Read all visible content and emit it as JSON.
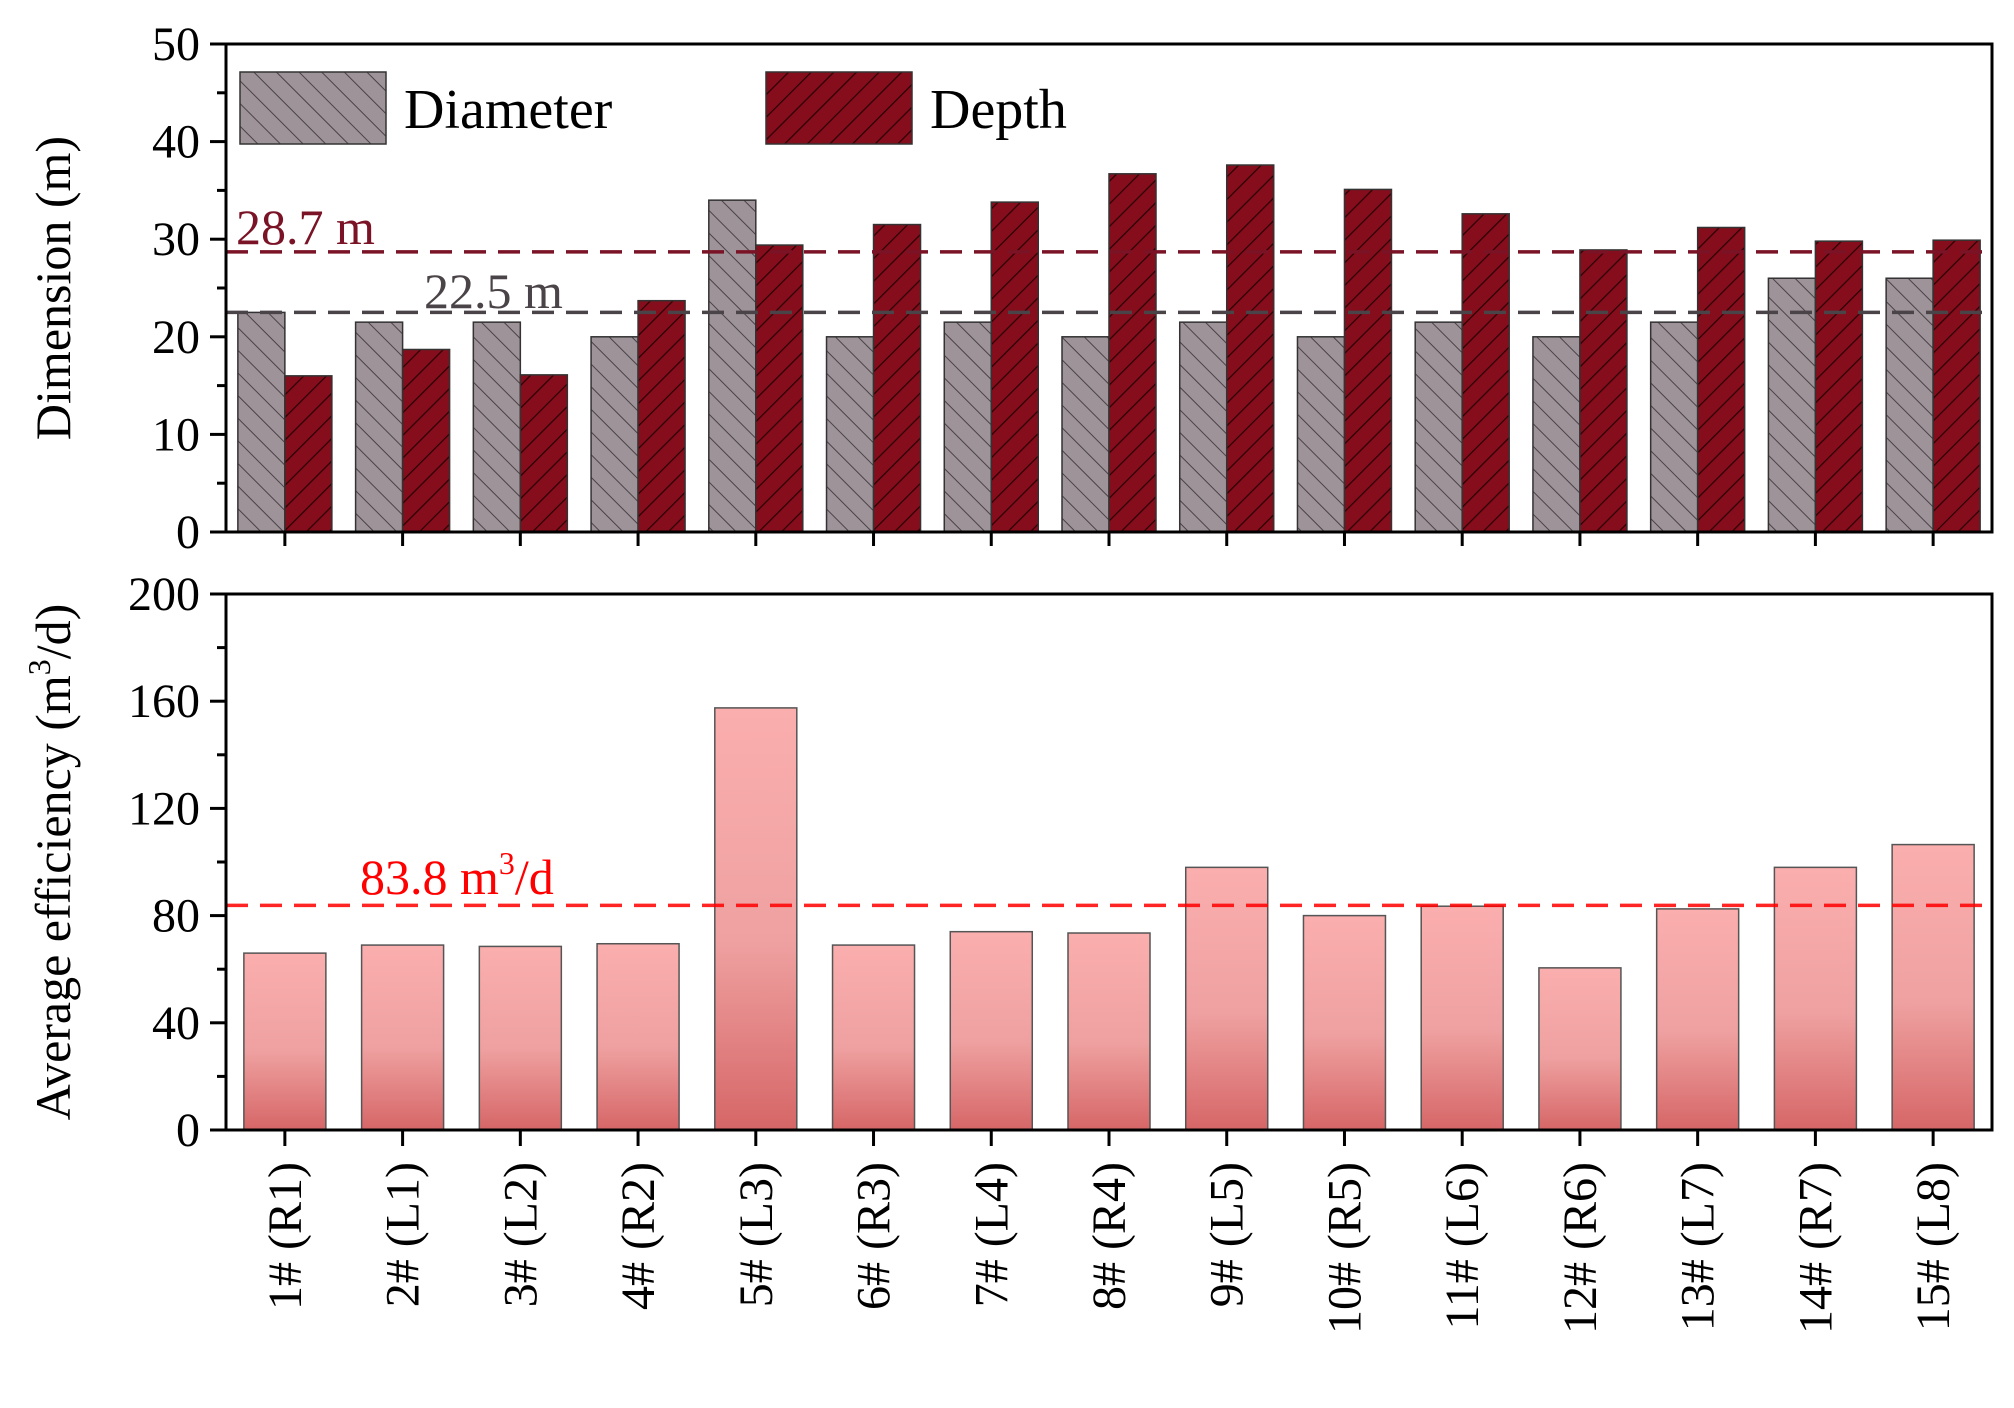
{
  "chart_data": [
    {
      "type": "bar",
      "panel": "top",
      "categories": [
        "1# (R1)",
        "2# (L1)",
        "3# (L2)",
        "4# (R2)",
        "5# (L3)",
        "6# (R3)",
        "7# (L4)",
        "8# (R4)",
        "9# (L5)",
        "10# (R5)",
        "11# (L6)",
        "12# (R6)",
        "13# (L7)",
        "14# (R7)",
        "15# (L8)"
      ],
      "series": [
        {
          "name": "Diameter",
          "color": "#9d9399",
          "values": [
            22.5,
            21.5,
            21.5,
            20,
            34,
            20,
            21.5,
            20,
            21.5,
            20,
            21.5,
            20,
            21.5,
            26,
            26
          ]
        },
        {
          "name": "Depth",
          "color": "#860d1b",
          "values": [
            16,
            18.7,
            16.1,
            23.7,
            29.4,
            31.5,
            33.8,
            36.7,
            37.6,
            35.1,
            32.6,
            28.9,
            31.2,
            29.8,
            29.9
          ]
        }
      ],
      "ylabel": "Dimension (m)",
      "ylim": [
        0,
        50
      ],
      "yticks": [
        "0",
        "10",
        "20",
        "30",
        "40",
        "50"
      ],
      "reference_lines": [
        {
          "label": "28.7 m",
          "value": 28.7,
          "color": "#7a1326"
        },
        {
          "label": "22.5 m",
          "value": 22.5,
          "color": "#4a4347"
        }
      ],
      "legend": [
        "Diameter",
        "Depth"
      ],
      "legend_position": "top-left"
    },
    {
      "type": "bar",
      "panel": "bottom",
      "categories": [
        "1# (R1)",
        "2# (L1)",
        "3# (L2)",
        "4# (R2)",
        "5# (L3)",
        "6# (R3)",
        "7# (L4)",
        "8# (R4)",
        "9# (L5)",
        "10# (R5)",
        "11# (L6)",
        "12# (R6)",
        "13# (L7)",
        "14# (R7)",
        "15# (L8)"
      ],
      "series": [
        {
          "name": "Average efficiency",
          "color": "#f5a9a9",
          "values": [
            66,
            69,
            68.5,
            69.5,
            157.5,
            69,
            74,
            73.5,
            98,
            80,
            83.5,
            60.5,
            82.5,
            98,
            106.5
          ]
        }
      ],
      "ylabel": "Average efficiency (m3/d)",
      "ylabel_main": "Average efficiency (m",
      "ylabel_sup": "3",
      "ylabel_end": "/d)",
      "ylim": [
        0,
        200
      ],
      "yticks": [
        "0",
        "40",
        "80",
        "120",
        "160",
        "200"
      ],
      "reference_lines": [
        {
          "label": "83.8 m3/d",
          "label_main": "83.8 m",
          "label_sup": "3",
          "label_end": "/d",
          "value": 83.8,
          "color": "#ff0000"
        }
      ]
    }
  ]
}
